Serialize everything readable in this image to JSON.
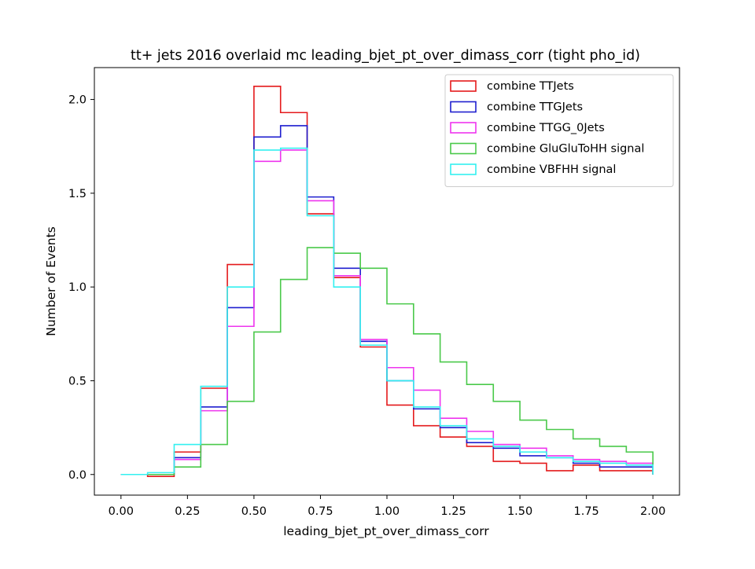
{
  "chart_data": {
    "type": "line",
    "style": "step-histogram",
    "title": "tt+ jets 2016 overlaid mc leading_bjet_pt_over_dimass_corr (tight pho_id)",
    "xlabel": "leading_bjet_pt_over_dimass_corr",
    "ylabel": "Number of Events",
    "xlim": [
      -0.1,
      2.1
    ],
    "ylim": [
      -0.11,
      2.17
    ],
    "x_ticks": [
      "0.00",
      "0.25",
      "0.50",
      "0.75",
      "1.00",
      "1.25",
      "1.50",
      "1.75",
      "2.00"
    ],
    "y_ticks": [
      "0.0",
      "0.5",
      "1.0",
      "1.5",
      "2.0"
    ],
    "legend_position": "top-right",
    "grid": false,
    "bin_edges": [
      0.0,
      0.1,
      0.2,
      0.3,
      0.4,
      0.5,
      0.6,
      0.7,
      0.8,
      0.9,
      1.0,
      1.1,
      1.2,
      1.3,
      1.4,
      1.5,
      1.6,
      1.7,
      1.8,
      1.9,
      2.0
    ],
    "series": [
      {
        "name": "combine TTJets",
        "color": "#e41a1c",
        "values": [
          0.0,
          -0.01,
          0.12,
          0.46,
          1.12,
          2.07,
          1.93,
          1.39,
          1.05,
          0.68,
          0.37,
          0.26,
          0.2,
          0.15,
          0.07,
          0.06,
          0.02,
          0.05,
          0.02,
          0.02
        ]
      },
      {
        "name": "combine TTGJets",
        "color": "#1f1fcf",
        "values": [
          0.0,
          0.0,
          0.09,
          0.36,
          0.89,
          1.8,
          1.86,
          1.48,
          1.1,
          0.71,
          0.5,
          0.35,
          0.25,
          0.17,
          0.14,
          0.1,
          0.09,
          0.06,
          0.04,
          0.04
        ]
      },
      {
        "name": "combine TTGG_0Jets",
        "color": "#ee35ee",
        "values": [
          0.0,
          0.0,
          0.08,
          0.34,
          0.79,
          1.67,
          1.73,
          1.46,
          1.06,
          0.72,
          0.57,
          0.45,
          0.3,
          0.23,
          0.16,
          0.14,
          0.1,
          0.08,
          0.07,
          0.06
        ]
      },
      {
        "name": "combine GluGluToHH signal",
        "color": "#4ac94a",
        "values": [
          0.0,
          0.0,
          0.04,
          0.16,
          0.39,
          0.76,
          1.04,
          1.21,
          1.18,
          1.1,
          0.91,
          0.75,
          0.6,
          0.48,
          0.39,
          0.29,
          0.24,
          0.19,
          0.15,
          0.12
        ]
      },
      {
        "name": "combine VBFHH signal",
        "color": "#33f0f0",
        "values": [
          0.0,
          0.01,
          0.16,
          0.47,
          1.0,
          1.73,
          1.74,
          1.38,
          1.0,
          0.69,
          0.5,
          0.36,
          0.26,
          0.19,
          0.15,
          0.12,
          0.09,
          0.07,
          0.06,
          0.05
        ]
      }
    ]
  }
}
